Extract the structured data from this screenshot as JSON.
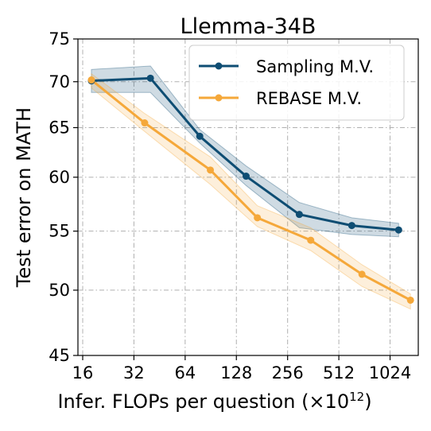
{
  "chart_data": {
    "type": "line",
    "title": "Llemma-34B",
    "xlabel": "Infer. FLOPs per question (×10",
    "xlabel_sup": "12",
    "xlabel_tail": ")",
    "ylabel": "Test error on MATH",
    "x_scale": "log2",
    "y_scale": "log",
    "xlim": [
      15,
      1500
    ],
    "ylim": [
      45,
      75
    ],
    "x_ticks": [
      16,
      32,
      64,
      128,
      256,
      512,
      1024
    ],
    "x_tick_labels": [
      "16",
      "32",
      "64",
      "128",
      "256",
      "512",
      "1024"
    ],
    "y_ticks": [
      45,
      50,
      55,
      60,
      65,
      70,
      75
    ],
    "y_tick_labels": [
      "45",
      "50",
      "55",
      "60",
      "65",
      "70",
      "75"
    ],
    "grid": true,
    "legend_position": "top-right",
    "series": [
      {
        "name": "Sampling M.V.",
        "color": "#0e4d73",
        "x": [
          18,
          40,
          78,
          146,
          300,
          610,
          1150
        ],
        "y": [
          70.1,
          70.4,
          64.1,
          60.1,
          56.5,
          55.5,
          55.1
        ],
        "band_low": [
          68.8,
          68.8,
          63.4,
          59.2,
          55.3,
          54.7,
          54.5
        ],
        "band_high": [
          71.4,
          71.8,
          64.8,
          61.1,
          57.6,
          56.2,
          55.7
        ]
      },
      {
        "name": "REBASE M.V.",
        "color": "#f5a83a",
        "x": [
          18,
          37,
          90,
          170,
          350,
          700,
          1350
        ],
        "y": [
          70.2,
          65.5,
          60.7,
          56.2,
          54.2,
          51.3,
          49.2
        ],
        "band_low": [
          69.3,
          64.6,
          59.3,
          55.4,
          53.3,
          50.3,
          48.5
        ],
        "band_high": [
          70.9,
          66.5,
          62.0,
          57.3,
          55.3,
          52.1,
          49.7
        ]
      }
    ]
  }
}
